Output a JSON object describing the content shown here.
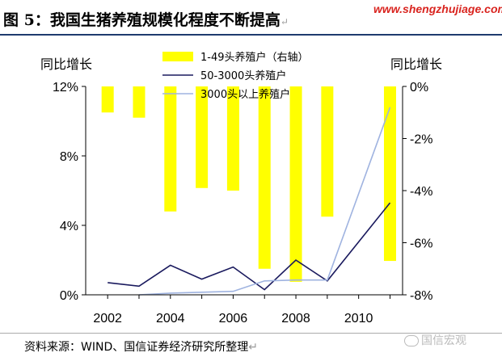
{
  "title": "图 5：我国生猪养殖规模化程度不断提高",
  "title_mark": "↵",
  "watermark_url": "www.shengzhujiage.com",
  "left_axis_title": "同比增长",
  "right_axis_title": "同比增长",
  "source": "资料来源：WIND、国信证券经济研究所整理",
  "source_mark": "↵",
  "brand": "国信宏观",
  "chart_data": {
    "type": "bar",
    "x": [
      2002,
      2003,
      2004,
      2005,
      2006,
      2007,
      2008,
      2009,
      2010,
      2011
    ],
    "x_tick_labels": [
      "2002",
      "2004",
      "2006",
      "2008",
      "2010"
    ],
    "x_ticks": [
      2002,
      2004,
      2006,
      2008,
      2010
    ],
    "y_left": {
      "min": 0,
      "max": 12,
      "ticks": [
        0,
        4,
        8,
        12
      ],
      "tick_labels": [
        "0%",
        "4%",
        "8%",
        "12%"
      ]
    },
    "y_right": {
      "min": -8,
      "max": 0,
      "ticks": [
        0,
        -2,
        -4,
        -6,
        -8
      ],
      "tick_labels": [
        "0%",
        "-2%",
        "-4%",
        "-6%",
        "-8%"
      ]
    },
    "series": [
      {
        "name": "1-49头养殖户（右轴）",
        "type": "bar",
        "axis": "right",
        "color": "#ffff00",
        "values": [
          -1.0,
          -1.2,
          -4.8,
          -3.9,
          -4.0,
          -7.0,
          -7.5,
          -5.0,
          null,
          -6.7
        ]
      },
      {
        "name": "50-3000头养殖户",
        "type": "line",
        "axis": "left",
        "color": "#1a1a5e",
        "values": [
          0.7,
          0.5,
          1.7,
          0.9,
          1.6,
          0.3,
          2.0,
          0.8,
          null,
          5.3
        ]
      },
      {
        "name": "3000头以上养殖户",
        "type": "line",
        "axis": "left",
        "color": "#9fb3e0",
        "values": [
          null,
          0.0,
          0.1,
          0.15,
          0.2,
          0.8,
          0.85,
          0.85,
          null,
          10.8
        ]
      }
    ]
  }
}
